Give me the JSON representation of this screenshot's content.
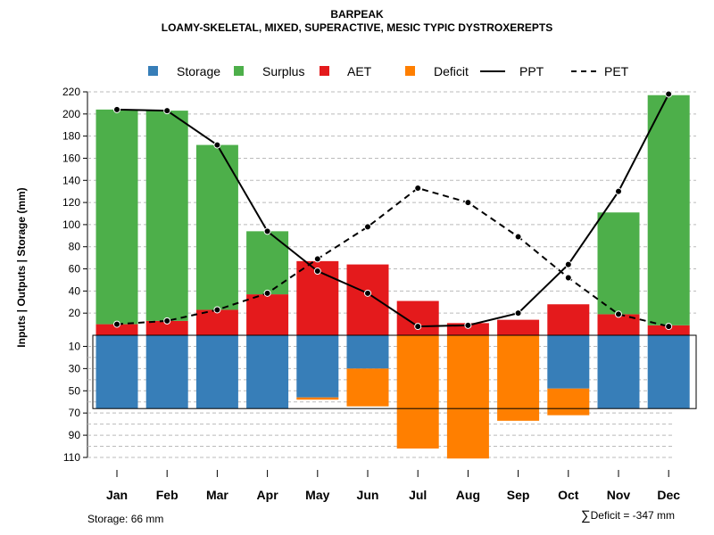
{
  "colors": {
    "storage": "#377EB8",
    "surplus": "#4DAF4A",
    "aet": "#E41A1C",
    "deficit": "#FF7F00",
    "line": "#000000",
    "grid": "#bbbbbb"
  },
  "legend": {
    "storage": "Storage",
    "surplus": "Surplus",
    "aet": "AET",
    "deficit": "Deficit",
    "ppt": "PPT",
    "pet": "PET"
  },
  "footer": {
    "storage": "Storage: 66 mm",
    "sigma": "∑",
    "deficit": "Deficit = -347 mm"
  },
  "chart_data": {
    "type": "bar",
    "title": "BARPEAK",
    "subtitle": "LOAMY-SKELETAL, MIXED, SUPERACTIVE, MESIC TYPIC DYSTROXEREPTS",
    "ylabel": "Inputs | Outputs | Storage    (mm)",
    "xlabel": "",
    "categories": [
      "Jan",
      "Feb",
      "Mar",
      "Apr",
      "May",
      "Jun",
      "Jul",
      "Aug",
      "Sep",
      "Oct",
      "Nov",
      "Dec"
    ],
    "upper_ticks": [
      20,
      40,
      60,
      80,
      100,
      120,
      140,
      160,
      180,
      200,
      220
    ],
    "lower_ticks": [
      10,
      30,
      50,
      70,
      90,
      110
    ],
    "ylim_upper": [
      0,
      220
    ],
    "ylim_lower": [
      0,
      110
    ],
    "storage_capacity_mm": 66,
    "series": [
      {
        "name": "AET",
        "values": [
          10,
          13,
          23,
          37,
          67,
          64,
          31,
          11,
          14,
          28,
          19,
          9
        ]
      },
      {
        "name": "Surplus",
        "values": [
          194,
          190,
          149,
          57,
          0,
          0,
          0,
          0,
          0,
          0,
          92,
          208
        ]
      },
      {
        "name": "Storage",
        "values": [
          66,
          66,
          66,
          66,
          56,
          30,
          0,
          0,
          0,
          48,
          66,
          66
        ]
      },
      {
        "name": "Deficit",
        "values": [
          0,
          0,
          0,
          0,
          2,
          34,
          102,
          111,
          77,
          24,
          0,
          0
        ]
      },
      {
        "name": "PPT",
        "values": [
          204,
          203,
          172,
          94,
          58,
          38,
          8,
          9,
          20,
          64,
          130,
          218
        ]
      },
      {
        "name": "PET",
        "values": [
          10,
          13,
          23,
          38,
          69,
          98,
          133,
          120,
          89,
          52,
          19,
          8
        ]
      }
    ]
  }
}
